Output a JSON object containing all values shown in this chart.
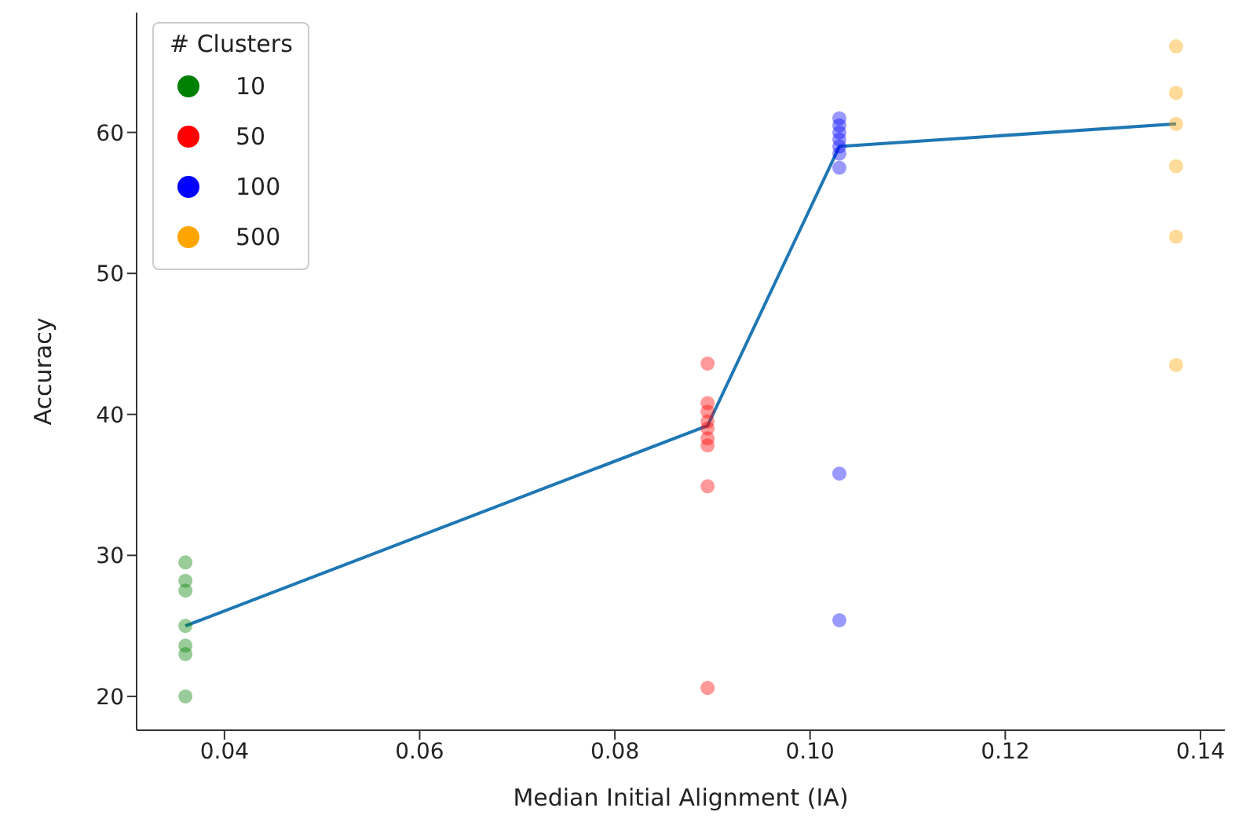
{
  "chart_data": {
    "type": "scatter",
    "xlabel": "Median Initial Alignment (IA)",
    "ylabel": "Accuracy",
    "legend_title": "# Clusters",
    "legend": "top left",
    "grid": false,
    "marker": "circle",
    "xlim": [
      0.031,
      0.1425
    ],
    "xticks": [
      0.04,
      0.06,
      0.08,
      {
        "value": 0.1,
        "label": "0.10"
      },
      0.12,
      0.14
    ],
    "ylim": [
      17.6,
      68.5
    ],
    "yticks": [
      20,
      30,
      40,
      50,
      60
    ],
    "series": [
      {
        "name": "10",
        "color": "#008000",
        "x": [
          0.036,
          0.036,
          0.036,
          0.036,
          0.036,
          0.036,
          0.036
        ],
        "values": [
          29.5,
          28.2,
          27.5,
          25,
          23.6,
          23,
          20
        ]
      },
      {
        "name": "50",
        "color": "#ff0000",
        "x": [
          0.0895,
          0.0895,
          0.0895,
          0.0895,
          0.0895,
          0.0895,
          0.0895,
          0.0895,
          0.0895
        ],
        "values": [
          43.6,
          40.8,
          40.2,
          39.5,
          39,
          38.3,
          37.8,
          34.9,
          20.6
        ]
      },
      {
        "name": "100",
        "color": "#0000ff",
        "x": [
          0.103,
          0.103,
          0.103,
          0.103,
          0.103,
          0.103,
          0.103,
          0.103,
          0.103
        ],
        "values": [
          61,
          60.5,
          60,
          59.5,
          59,
          58.5,
          57.5,
          35.8,
          25.4
        ]
      },
      {
        "name": "500",
        "color": "#ffa500",
        "x": [
          0.1375,
          0.1375,
          0.1375,
          0.1375,
          0.1375,
          0.1375
        ],
        "values": [
          66.1,
          62.8,
          60.6,
          57.6,
          52.6,
          43.5
        ]
      },
      {
        "type": "line",
        "marker": "none",
        "color": "#1f77b4",
        "x": [
          0.036,
          0.0895,
          0.103,
          0.1375
        ],
        "values": [
          25,
          39.2,
          59,
          60.6
        ]
      }
    ]
  }
}
